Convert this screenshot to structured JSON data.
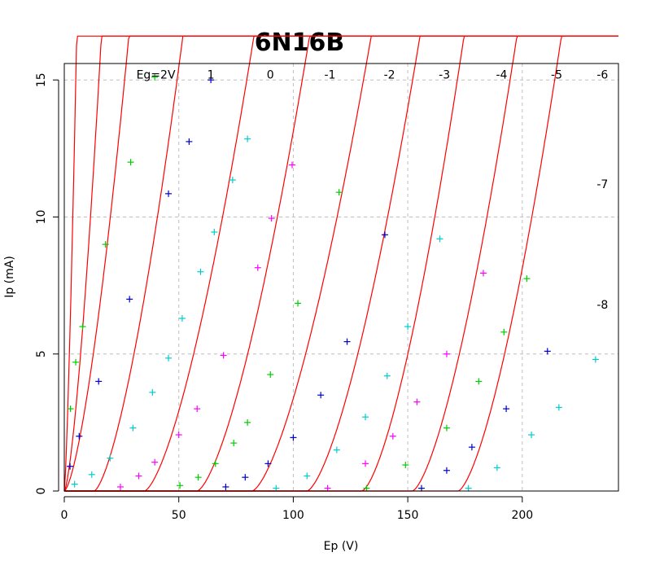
{
  "chart_data": {
    "type": "scatter",
    "title": "6N16B",
    "xlabel": "Ep (V)",
    "ylabel": "Ip (mA)",
    "xlim": [
      0,
      242
    ],
    "ylim": [
      0,
      15.6
    ],
    "xticks": [
      0,
      50,
      100,
      150,
      200
    ],
    "yticks": [
      0,
      5,
      10,
      15
    ],
    "grid": true,
    "grid_x": [
      50,
      100,
      150,
      200
    ],
    "grid_y": [
      5,
      10,
      15
    ],
    "model_color": "#ff0000",
    "marker_colors": [
      "#0000cd",
      "#00cdcd",
      "#ff00ff",
      "#00cd00"
    ],
    "curves": [
      {
        "label": "Eg=2V",
        "label_x": 40,
        "label_y": 15.2,
        "cutoff": 0,
        "k": 1.7,
        "p": 1.35
      },
      {
        "label": "1",
        "label_x": 64,
        "label_y": 15.2,
        "cutoff": 0,
        "k": 0.2845,
        "p": 1.46
      },
      {
        "label": "0",
        "label_x": 90,
        "label_y": 15.2,
        "cutoff": 0,
        "k": 0.1109,
        "p": 1.5
      },
      {
        "label": "-1",
        "label_x": 116,
        "label_y": 15.2,
        "cutoff": 13,
        "k": 0.0687,
        "p": 1.5
      },
      {
        "label": "-2",
        "label_x": 142,
        "label_y": 15.2,
        "cutoff": 35,
        "k": 0.0502,
        "p": 1.5
      },
      {
        "label": "-3",
        "label_x": 166,
        "label_y": 15.2,
        "cutoff": 58,
        "k": 0.0482,
        "p": 1.5
      },
      {
        "label": "-4",
        "label_x": 191,
        "label_y": 15.2,
        "cutoff": 82,
        "k": 0.0442,
        "p": 1.5
      },
      {
        "label": "-5",
        "label_x": 215,
        "label_y": 15.2,
        "cutoff": 106,
        "k": 0.0479,
        "p": 1.5
      },
      {
        "label": "-6",
        "label_x": 235,
        "label_y": 15.2,
        "cutoff": 130,
        "k": 0.0558,
        "p": 1.5
      },
      {
        "label": "-7",
        "label_x": 235,
        "label_y": 11.2,
        "cutoff": 152,
        "k": 0.0538,
        "p": 1.5
      },
      {
        "label": "-8",
        "label_x": 235,
        "label_y": 6.8,
        "cutoff": 172,
        "k": 0.0548,
        "p": 1.5
      }
    ],
    "series": [
      {
        "color": "#00cd00",
        "points": [
          [
            2.7,
            3.0
          ],
          [
            5.0,
            4.7
          ],
          [
            8.0,
            6.0
          ],
          [
            18.0,
            9.0
          ],
          [
            29.0,
            12.0
          ],
          [
            39.5,
            15.1
          ],
          [
            50.5,
            0.2
          ],
          [
            58.5,
            0.5
          ],
          [
            66.0,
            1.0
          ],
          [
            74.0,
            1.75
          ],
          [
            80.0,
            2.5
          ],
          [
            90.0,
            4.25
          ],
          [
            102.0,
            6.85
          ],
          [
            120.0,
            10.9
          ],
          [
            132.0,
            0.1
          ],
          [
            149.0,
            0.95
          ],
          [
            167.0,
            2.3
          ],
          [
            181.0,
            4.0
          ],
          [
            192.0,
            5.8
          ],
          [
            202.0,
            7.75
          ]
        ]
      },
      {
        "color": "#0000cd",
        "points": [
          [
            2.5,
            0.9
          ],
          [
            6.5,
            2.0
          ],
          [
            15.0,
            4.0
          ],
          [
            28.5,
            7.0
          ],
          [
            45.5,
            10.85
          ],
          [
            54.5,
            12.75
          ],
          [
            64.0,
            15.0
          ],
          [
            70.5,
            0.15
          ],
          [
            79.0,
            0.5
          ],
          [
            89.0,
            1.0
          ],
          [
            100.0,
            1.95
          ],
          [
            112.0,
            3.5
          ],
          [
            123.5,
            5.45
          ],
          [
            140.0,
            9.35
          ],
          [
            156.0,
            0.1
          ],
          [
            167.0,
            0.75
          ],
          [
            178.0,
            1.6
          ],
          [
            193.0,
            3.0
          ],
          [
            211.0,
            5.1
          ]
        ]
      },
      {
        "color": "#00cdcd",
        "points": [
          [
            4.5,
            0.25
          ],
          [
            12.0,
            0.6
          ],
          [
            20.0,
            1.2
          ],
          [
            30.0,
            2.3
          ],
          [
            38.5,
            3.6
          ],
          [
            45.5,
            4.85
          ],
          [
            51.5,
            6.3
          ],
          [
            59.5,
            8.0
          ],
          [
            65.5,
            9.45
          ],
          [
            73.5,
            11.35
          ],
          [
            80.0,
            12.85
          ],
          [
            92.5,
            0.1
          ],
          [
            106.0,
            0.55
          ],
          [
            119.0,
            1.5
          ],
          [
            131.5,
            2.7
          ],
          [
            141.0,
            4.2
          ],
          [
            150.0,
            6.0
          ],
          [
            164.0,
            9.2
          ],
          [
            176.5,
            0.1
          ],
          [
            189.0,
            0.85
          ],
          [
            204.0,
            2.05
          ],
          [
            216.0,
            3.05
          ],
          [
            232.0,
            4.8
          ]
        ]
      },
      {
        "color": "#ff00ff",
        "points": [
          [
            24.5,
            0.15
          ],
          [
            32.5,
            0.55
          ],
          [
            39.5,
            1.05
          ],
          [
            50.0,
            2.05
          ],
          [
            58.0,
            3.0
          ],
          [
            69.5,
            4.95
          ],
          [
            84.5,
            8.15
          ],
          [
            90.5,
            9.95
          ],
          [
            99.5,
            11.9
          ],
          [
            115.0,
            0.1
          ],
          [
            131.5,
            1.0
          ],
          [
            143.5,
            2.0
          ],
          [
            154.0,
            3.25
          ],
          [
            167.0,
            5.0
          ],
          [
            183.0,
            7.95
          ]
        ]
      }
    ]
  }
}
